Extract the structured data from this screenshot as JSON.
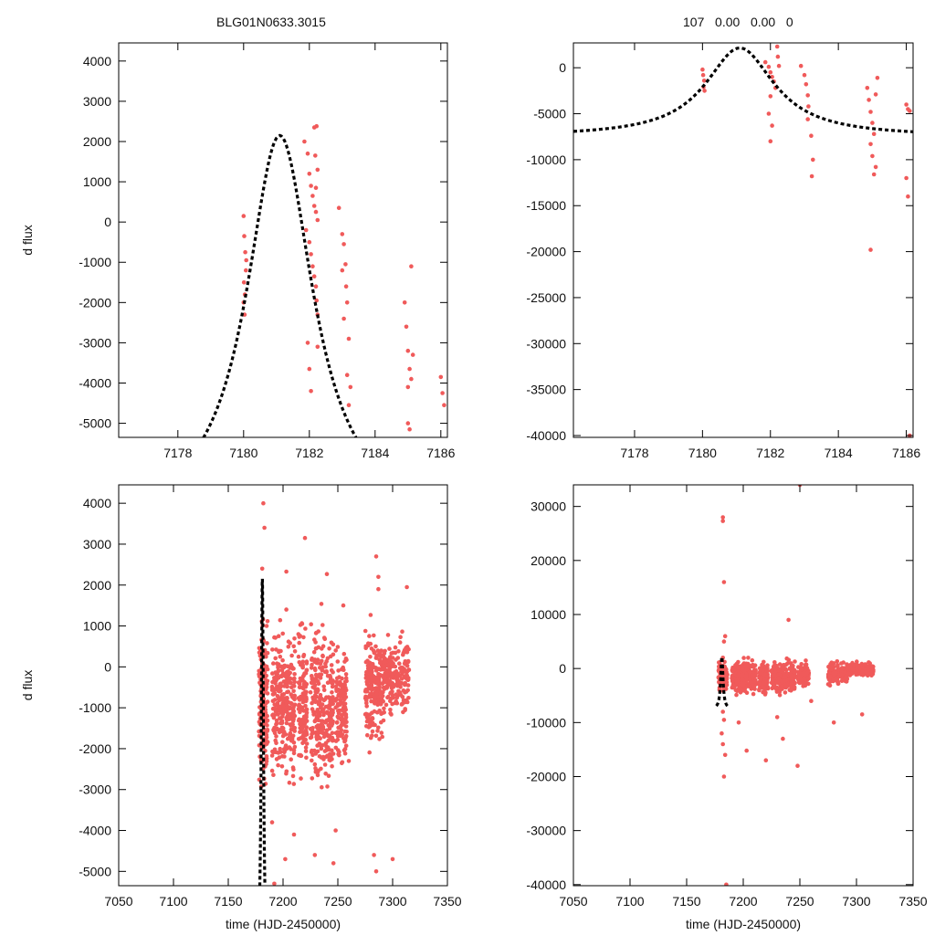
{
  "titles": {
    "left": "BLG01N0633.3015",
    "right": "107   0.00   0.00   0"
  },
  "colors": {
    "points": "#f05a5a",
    "model": "#000000",
    "frame": "#000000"
  },
  "chart_data": [
    {
      "type": "scatter",
      "panel": "top-left",
      "ylabel": "d flux",
      "xlabel": "",
      "xlim": [
        7176.2,
        7186.2
      ],
      "ylim": [
        -5350,
        4450
      ],
      "xticks": [
        7178,
        7180,
        7182,
        7184,
        7186
      ],
      "yticks": [
        -5000,
        -4000,
        -3000,
        -2000,
        -1000,
        0,
        1000,
        2000,
        3000,
        4000
      ],
      "model": {
        "type": "line",
        "style": "dashed",
        "t0": 7181.1,
        "peak": 2150,
        "base": -7500,
        "tau": 1.3,
        "x_range": [
          7176.2,
          7186.2
        ]
      },
      "series": [
        {
          "values": [
            [
              7180.0,
              150
            ],
            [
              7180.02,
              -350
            ],
            [
              7180.05,
              -750
            ],
            [
              7180.07,
              -1200
            ],
            [
              7180.01,
              -1500
            ],
            [
              7180.04,
              -1800
            ],
            [
              7180.0,
              -2000
            ],
            [
              7180.03,
              -2300
            ],
            [
              7180.08,
              -950
            ],
            [
              7181.85,
              2000
            ],
            [
              7181.95,
              1700
            ],
            [
              7182.0,
              1200
            ],
            [
              7182.05,
              900
            ],
            [
              7182.1,
              650
            ],
            [
              7182.15,
              400
            ],
            [
              7182.2,
              250
            ],
            [
              7182.25,
              50
            ],
            [
              7181.9,
              -200
            ],
            [
              7182.0,
              -500
            ],
            [
              7182.05,
              -800
            ],
            [
              7182.1,
              -1100
            ],
            [
              7182.15,
              -1350
            ],
            [
              7182.2,
              -1600
            ],
            [
              7182.22,
              -1950
            ],
            [
              7182.25,
              -2300
            ],
            [
              7182.15,
              2350
            ],
            [
              7182.22,
              2380
            ],
            [
              7182.18,
              1650
            ],
            [
              7182.25,
              1300
            ],
            [
              7182.2,
              850
            ],
            [
              7181.95,
              -3000
            ],
            [
              7182.0,
              -3650
            ],
            [
              7182.05,
              -4200
            ],
            [
              7182.25,
              -3100
            ],
            [
              7182.9,
              350
            ],
            [
              7183.0,
              -300
            ],
            [
              7183.05,
              -550
            ],
            [
              7183.1,
              -1050
            ],
            [
              7183.0,
              -1200
            ],
            [
              7183.12,
              -1600
            ],
            [
              7183.15,
              -2000
            ],
            [
              7183.05,
              -2400
            ],
            [
              7183.2,
              -2900
            ],
            [
              7183.15,
              -3800
            ],
            [
              7183.25,
              -4100
            ],
            [
              7183.2,
              -4550
            ],
            [
              7184.9,
              -2000
            ],
            [
              7184.95,
              -2600
            ],
            [
              7185.0,
              -3200
            ],
            [
              7185.05,
              -3650
            ],
            [
              7185.1,
              -3900
            ],
            [
              7185.0,
              -4100
            ],
            [
              7185.1,
              -1100
            ],
            [
              7185.15,
              -3300
            ],
            [
              7185.0,
              -5000
            ],
            [
              7185.05,
              -5150
            ],
            [
              7186.0,
              -3850
            ],
            [
              7186.05,
              -4250
            ],
            [
              7186.1,
              -4550
            ]
          ]
        }
      ]
    },
    {
      "type": "scatter",
      "panel": "top-right",
      "ylabel": "",
      "xlabel": "",
      "xlim": [
        7176.2,
        7186.2
      ],
      "ylim": [
        -40200,
        2700
      ],
      "xticks": [
        7178,
        7180,
        7182,
        7184,
        7186
      ],
      "yticks": [
        -40000,
        -35000,
        -30000,
        -25000,
        -20000,
        -15000,
        -10000,
        -5000,
        0
      ],
      "model": {
        "type": "line",
        "style": "dashed",
        "t0": 7181.1,
        "peak": 2150,
        "base": -7500,
        "tau": 1.3,
        "x_range": [
          7176.2,
          7186.2
        ]
      },
      "series": [
        {
          "values": [
            [
              7180.0,
              -200
            ],
            [
              7180.02,
              -800
            ],
            [
              7180.05,
              -1400
            ],
            [
              7180.03,
              -2100
            ],
            [
              7180.06,
              -2500
            ],
            [
              7181.85,
              600
            ],
            [
              7181.95,
              100
            ],
            [
              7182.0,
              -500
            ],
            [
              7182.05,
              -1000
            ],
            [
              7182.1,
              -1500
            ],
            [
              7182.15,
              -2200
            ],
            [
              7182.0,
              -3100
            ],
            [
              7181.95,
              -5000
            ],
            [
              7182.05,
              -6300
            ],
            [
              7182.0,
              -8000
            ],
            [
              7182.2,
              2300
            ],
            [
              7182.22,
              1200
            ],
            [
              7182.25,
              200
            ],
            [
              7182.9,
              200
            ],
            [
              7183.0,
              -800
            ],
            [
              7183.05,
              -1800
            ],
            [
              7183.1,
              -3000
            ],
            [
              7183.12,
              -4200
            ],
            [
              7183.1,
              -5600
            ],
            [
              7183.2,
              -7400
            ],
            [
              7183.25,
              -10000
            ],
            [
              7183.22,
              -11800
            ],
            [
              7184.85,
              -2200
            ],
            [
              7184.9,
              -3500
            ],
            [
              7184.95,
              -4800
            ],
            [
              7185.0,
              -6000
            ],
            [
              7185.05,
              -7200
            ],
            [
              7184.95,
              -8300
            ],
            [
              7185.0,
              -9600
            ],
            [
              7185.1,
              -10800
            ],
            [
              7185.05,
              -11600
            ],
            [
              7185.15,
              -1100
            ],
            [
              7185.1,
              -2900
            ],
            [
              7184.95,
              -19800
            ],
            [
              7186.0,
              -4000
            ],
            [
              7186.05,
              -4500
            ],
            [
              7186.1,
              -4700
            ],
            [
              7186.05,
              -14000
            ],
            [
              7186.0,
              -12000
            ],
            [
              7186.1,
              -40000
            ]
          ]
        }
      ]
    },
    {
      "type": "scatter",
      "panel": "bottom-left",
      "ylabel": "d flux",
      "xlabel": "time (HJD-2450000)",
      "xlim": [
        7050,
        7350
      ],
      "ylim": [
        -5350,
        4450
      ],
      "xticks": [
        7050,
        7100,
        7150,
        7200,
        7250,
        7300,
        7350
      ],
      "yticks": [
        -5000,
        -4000,
        -3000,
        -2000,
        -1000,
        0,
        1000,
        2000,
        3000,
        4000
      ],
      "model": {
        "type": "line",
        "style": "dashed",
        "t0": 7181.1,
        "peak": 2150,
        "base": -7500,
        "tau": 1.3,
        "x_range": [
          7176.2,
          7186.2
        ]
      },
      "series": [
        {
          "values": [
            [
              7182,
              4000
            ],
            [
              7183,
              3400
            ],
            [
              7181,
              2400
            ],
            [
              7220,
              3150
            ],
            [
              7203,
              2330
            ],
            [
              7240,
              2270
            ],
            [
              7235,
              1540
            ],
            [
              7255,
              1500
            ],
            [
              7285,
              2700
            ],
            [
              7287,
              2200
            ],
            [
              7287,
              1900
            ],
            [
              7313,
              1950
            ],
            [
              7203,
              1400
            ],
            [
              7185,
              1000
            ],
            [
              7214,
              800
            ],
            [
              7230,
              450
            ],
            [
              7190,
              -3800
            ],
            [
              7210,
              -4100
            ],
            [
              7248,
              -4000
            ],
            [
              7283,
              -4600
            ],
            [
              7285,
              -5000
            ],
            [
              7300,
              -4700
            ],
            [
              7246,
              -4800
            ],
            [
              7229,
              -4600
            ],
            [
              7202,
              -4700
            ],
            [
              7192,
              -5300
            ],
            [
              7260,
              -2300
            ]
          ]
        }
      ],
      "clusters": [
        {
          "x": [
            7178,
            7186
          ],
          "y_center": -900,
          "y_spread": 1600,
          "n": 160
        },
        {
          "x": [
            7190,
            7211
          ],
          "y_center": -900,
          "y_spread": 1400,
          "n": 300
        },
        {
          "x": [
            7214,
            7222
          ],
          "y_center": -1000,
          "y_spread": 1500,
          "n": 120
        },
        {
          "x": [
            7225,
            7246
          ],
          "y_center": -1000,
          "y_spread": 1500,
          "n": 270
        },
        {
          "x": [
            7248,
            7258
          ],
          "y_center": -900,
          "y_spread": 1300,
          "n": 130
        },
        {
          "x": [
            7275,
            7292
          ],
          "y_center": -500,
          "y_spread": 1100,
          "n": 210
        },
        {
          "x": [
            7292,
            7315
          ],
          "y_center": -200,
          "y_spread": 700,
          "n": 200
        }
      ]
    },
    {
      "type": "scatter",
      "panel": "bottom-right",
      "ylabel": "",
      "xlabel": "time (HJD-2450000)",
      "xlim": [
        7050,
        7350
      ],
      "ylim": [
        -40200,
        34000
      ],
      "xticks": [
        7050,
        7100,
        7150,
        7200,
        7250,
        7300,
        7350
      ],
      "yticks": [
        -40000,
        -30000,
        -20000,
        -10000,
        0,
        10000,
        20000,
        30000
      ],
      "model": {
        "type": "line",
        "style": "dashed",
        "t0": 7181.1,
        "peak": 2150,
        "base": -7500,
        "tau": 1.3,
        "x_range": [
          7176.2,
          7186.2
        ]
      },
      "series": [
        {
          "values": [
            [
              7182,
              28000
            ],
            [
              7182,
              27300
            ],
            [
              7183,
              16000
            ],
            [
              7184,
              6000
            ],
            [
              7183,
              5000
            ],
            [
              7182,
              2000
            ],
            [
              7182,
              -8000
            ],
            [
              7183,
              -9500
            ],
            [
              7181,
              -12000
            ],
            [
              7182,
              -14000
            ],
            [
              7184,
              -16000
            ],
            [
              7183,
              -20000
            ],
            [
              7185,
              -40000
            ],
            [
              7250,
              34000
            ],
            [
              7240,
              9000
            ],
            [
              7203,
              -15200
            ],
            [
              7220,
              -17000
            ],
            [
              7248,
              -18000
            ],
            [
              7235,
              -13000
            ],
            [
              7280,
              -10000
            ],
            [
              7305,
              -8500
            ],
            [
              7196,
              -10000
            ],
            [
              7230,
              -9000
            ],
            [
              7260,
              -6000
            ]
          ]
        }
      ],
      "clusters": [
        {
          "x": [
            7178,
            7186
          ],
          "y_center": -1500,
          "y_spread": 2500,
          "n": 90
        },
        {
          "x": [
            7190,
            7211
          ],
          "y_center": -1600,
          "y_spread": 2300,
          "n": 300
        },
        {
          "x": [
            7214,
            7222
          ],
          "y_center": -1600,
          "y_spread": 2300,
          "n": 110
        },
        {
          "x": [
            7225,
            7246
          ],
          "y_center": -1600,
          "y_spread": 2300,
          "n": 260
        },
        {
          "x": [
            7248,
            7258
          ],
          "y_center": -1200,
          "y_spread": 1700,
          "n": 110
        },
        {
          "x": [
            7275,
            7292
          ],
          "y_center": -1000,
          "y_spread": 1700,
          "n": 200
        },
        {
          "x": [
            7292,
            7315
          ],
          "y_center": -200,
          "y_spread": 900,
          "n": 190
        }
      ]
    }
  ]
}
